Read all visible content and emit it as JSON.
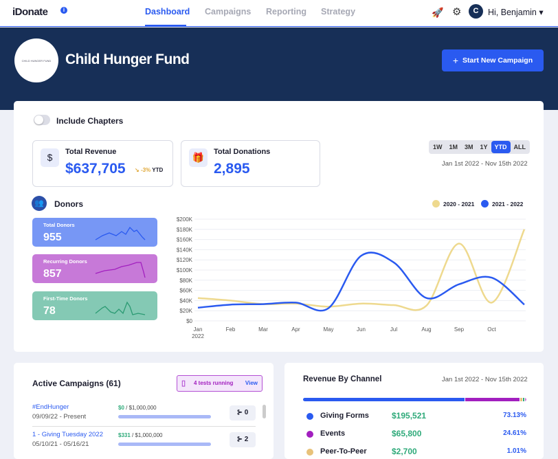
{
  "nav": {
    "logo": "iDonate",
    "info_icon": "i",
    "tabs": [
      {
        "label": "Dashboard",
        "active": true
      },
      {
        "label": "Campaigns"
      },
      {
        "label": "Reporting"
      },
      {
        "label": "Strategy"
      }
    ],
    "avatar_initial": "C",
    "greeting": "Hi, Benjamin ▾"
  },
  "hero": {
    "org_logo_text": "CHILD HUNGER FUND",
    "org_name": "Child Hunger Fund",
    "start_button": "Start New Campaign"
  },
  "summary": {
    "include_chapters": "Include Chapters",
    "include_chapters_on": false,
    "total_revenue": {
      "label": "Total Revenue",
      "value": "$637,705",
      "trend": "-3%",
      "trend_period": "YTD"
    },
    "total_donations": {
      "label": "Total Donations",
      "value": "2,895"
    },
    "ranges": [
      "1W",
      "1M",
      "3M",
      "1Y",
      "YTD",
      "ALL"
    ],
    "selected_range": "YTD",
    "date_range": "Jan 1st 2022 - Nov 15th 2022"
  },
  "donors": {
    "title": "Donors",
    "cards": [
      {
        "label": "Total Donors",
        "value": "955",
        "color": "#7797f5",
        "line": "#2a5af0"
      },
      {
        "label": "Recurring Donors",
        "value": "857",
        "color": "#c779d8",
        "line": "#a21fbf"
      },
      {
        "label": "First-Time Donors",
        "value": "78",
        "color": "#84c9b4",
        "line": "#2a9a72"
      }
    ]
  },
  "chart_data": {
    "type": "line",
    "categories": [
      "Jan\n2022",
      "Feb",
      "Mar",
      "Apr",
      "May",
      "Jun",
      "Jul",
      "Aug",
      "Sep",
      "Oct",
      ""
    ],
    "yticks": [
      "$0",
      "$20K",
      "$40K",
      "$60K",
      "$80K",
      "$100K",
      "$120K",
      "$140K",
      "$160K",
      "$180K",
      "$200K"
    ],
    "ylim": [
      0,
      200000
    ],
    "grid": true,
    "legend": "top-right",
    "series": [
      {
        "name": "2020 - 2021",
        "color": "#eed98e",
        "values": [
          45000,
          40000,
          33000,
          34000,
          28000,
          34000,
          31000,
          30000,
          152000,
          36000,
          180000
        ]
      },
      {
        "name": "2021 - 2022",
        "color": "#2a5af0",
        "values": [
          26000,
          32000,
          33000,
          36000,
          25000,
          128000,
          115000,
          45000,
          72000,
          85000,
          32000
        ]
      }
    ]
  },
  "campaigns": {
    "title": "Active Campaigns (61)",
    "tests": "4 tests running",
    "view": "View",
    "items": [
      {
        "name": "#EndHunger",
        "dates": "09/09/22 - Present",
        "raised": "$0",
        "goal": " / $1,000,000",
        "progress": 0,
        "ab_count": "0"
      },
      {
        "name": "1 - Giving Tuesday 2022",
        "dates": "05/10/21 - 05/16/21",
        "raised": "$331",
        "goal": " / $1,000,000",
        "progress": 0.0003,
        "ab_count": "2"
      }
    ]
  },
  "channels": {
    "title": "Revenue By Channel",
    "date_range": "Jan 1st 2022 - Nov 15th 2022",
    "items": [
      {
        "name": "Giving Forms",
        "amount": "$195,521",
        "percent": "73.13%",
        "share": 73.13,
        "color": "#2a5af0"
      },
      {
        "name": "Events",
        "amount": "$65,800",
        "percent": "24.61%",
        "share": 24.61,
        "color": "#a21fbf"
      },
      {
        "name": "Peer-To-Peer",
        "amount": "$2,700",
        "percent": "1.01%",
        "share": 1.01,
        "color": "#e8c27a"
      }
    ]
  }
}
